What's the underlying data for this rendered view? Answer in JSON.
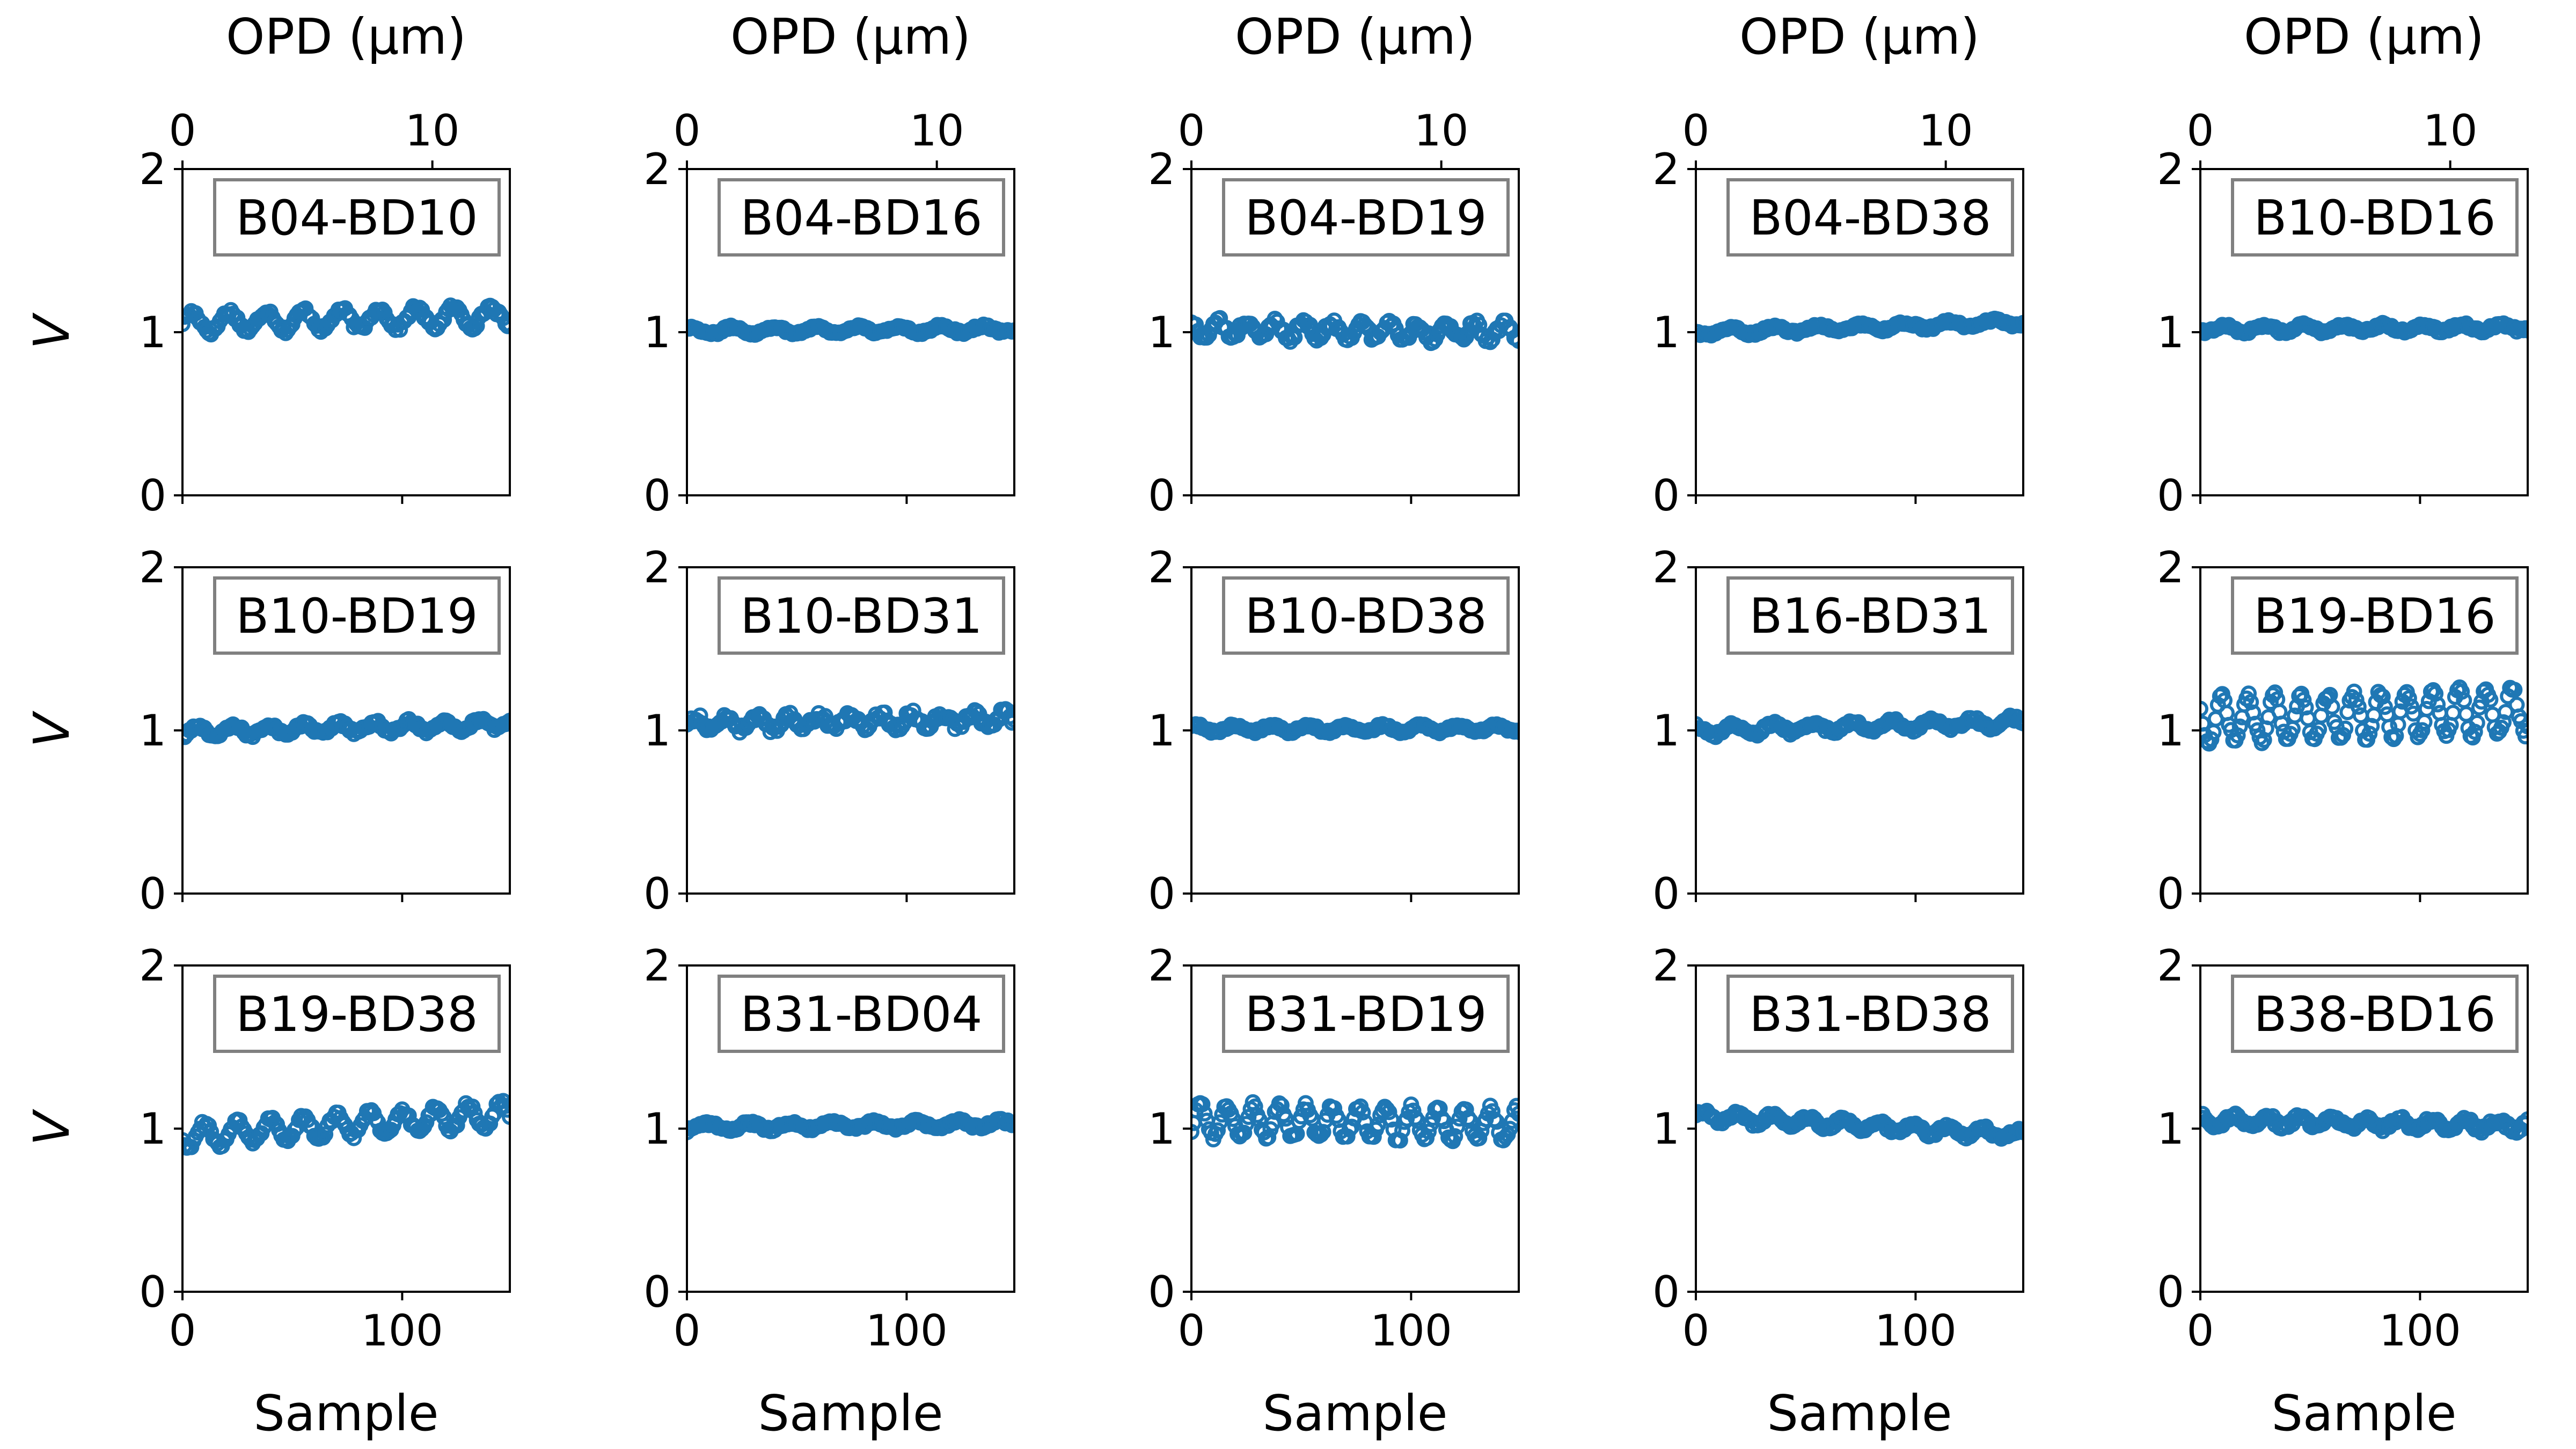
{
  "figure": {
    "top_axis_label": "OPD (μm)",
    "bottom_axis_label": "Sample",
    "y_axis_label": "V"
  },
  "chart_data": {
    "type": "scatter",
    "layout": "3x5 grid of small multiples",
    "marker": "open circle",
    "color": "#1f77b4",
    "x_range": [
      0,
      149
    ],
    "x_ticks": [
      0,
      100
    ],
    "x_tick_labels": [
      "0",
      "100"
    ],
    "x_label": "Sample",
    "x2_range": [
      0,
      13.1
    ],
    "x2_ticks": [
      0,
      10
    ],
    "x2_tick_labels": [
      "0",
      "10"
    ],
    "x2_label": "OPD (μm)",
    "y_range": [
      0,
      2
    ],
    "y_ticks": [
      0,
      1,
      2
    ],
    "y_tick_labels": [
      "0",
      "1",
      "2"
    ],
    "y_label": "V",
    "legend": "boxed label top-right of each panel",
    "grid": false,
    "panels": [
      {
        "label": "B04-BD10",
        "mean": 1.06,
        "amp": 0.06,
        "trend": 0.04,
        "period": 17,
        "noise": 0.02
      },
      {
        "label": "B04-BD16",
        "mean": 1.01,
        "amp": 0.02,
        "trend": 0.01,
        "period": 19,
        "noise": 0.01
      },
      {
        "label": "B04-BD19",
        "mean": 1.02,
        "amp": 0.05,
        "trend": -0.02,
        "period": 13,
        "noise": 0.025
      },
      {
        "label": "B04-BD38",
        "mean": 1.0,
        "amp": 0.02,
        "trend": 0.06,
        "period": 20,
        "noise": 0.01
      },
      {
        "label": "B10-BD16",
        "mean": 1.02,
        "amp": 0.02,
        "trend": 0.01,
        "period": 18,
        "noise": 0.012
      },
      {
        "label": "B10-BD19",
        "mean": 0.99,
        "amp": 0.03,
        "trend": 0.05,
        "period": 16,
        "noise": 0.015
      },
      {
        "label": "B10-BD31",
        "mean": 1.04,
        "amp": 0.04,
        "trend": 0.03,
        "period": 14,
        "noise": 0.025
      },
      {
        "label": "B10-BD38",
        "mean": 1.01,
        "amp": 0.02,
        "trend": 0.0,
        "period": 17,
        "noise": 0.01
      },
      {
        "label": "B16-BD31",
        "mean": 1.0,
        "amp": 0.03,
        "trend": 0.05,
        "period": 18,
        "noise": 0.015
      },
      {
        "label": "B19-BD16",
        "mean": 1.06,
        "amp": 0.14,
        "trend": 0.06,
        "period": 12,
        "noise": 0.02
      },
      {
        "label": "B19-BD38",
        "mean": 0.95,
        "amp": 0.07,
        "trend": 0.14,
        "period": 15,
        "noise": 0.02
      },
      {
        "label": "B31-BD04",
        "mean": 1.01,
        "amp": 0.02,
        "trend": 0.02,
        "period": 19,
        "noise": 0.012
      },
      {
        "label": "B31-BD19",
        "mean": 1.05,
        "amp": 0.1,
        "trend": -0.03,
        "period": 12,
        "noise": 0.02
      },
      {
        "label": "B31-BD38",
        "mean": 1.08,
        "amp": 0.03,
        "trend": -0.12,
        "period": 16,
        "noise": 0.015
      },
      {
        "label": "B38-BD16",
        "mean": 1.05,
        "amp": 0.03,
        "trend": -0.03,
        "period": 15,
        "noise": 0.02
      }
    ]
  }
}
